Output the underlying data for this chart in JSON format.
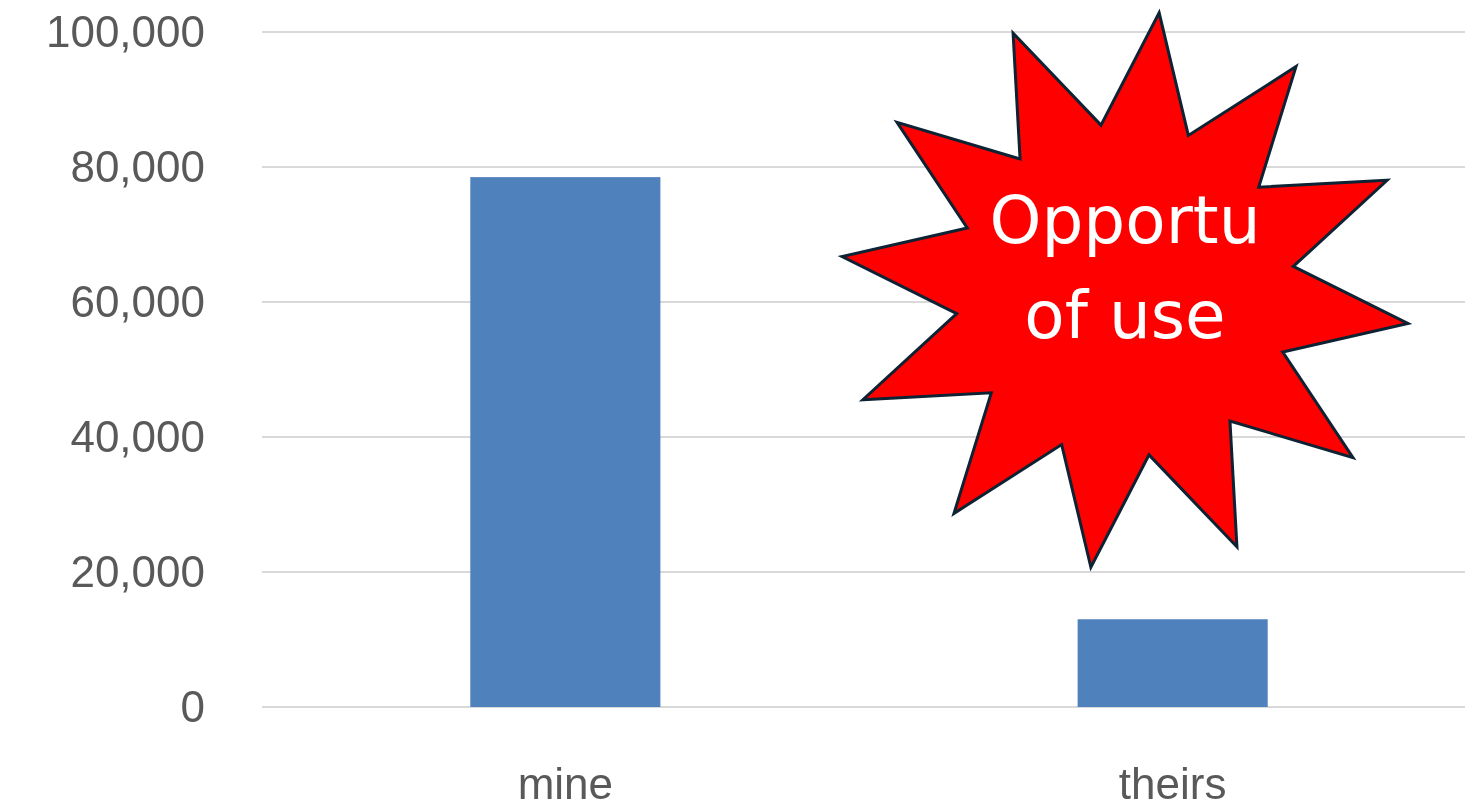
{
  "chart_data": {
    "type": "bar",
    "categories": [
      "mine",
      "theirs"
    ],
    "values": [
      78500,
      13000
    ],
    "color": "#4f81bd",
    "ylim": [
      0,
      100000
    ],
    "yticks": [
      {
        "value": 0,
        "label": "0"
      },
      {
        "value": 20000,
        "label": "20,000"
      },
      {
        "value": 40000,
        "label": "40,000"
      },
      {
        "value": 60000,
        "label": "60,000"
      },
      {
        "value": 80000,
        "label": "80,000"
      },
      {
        "value": 100000,
        "label": "100,000"
      }
    ],
    "grid": "y",
    "annotations": [
      "Opportu",
      "of use"
    ]
  }
}
